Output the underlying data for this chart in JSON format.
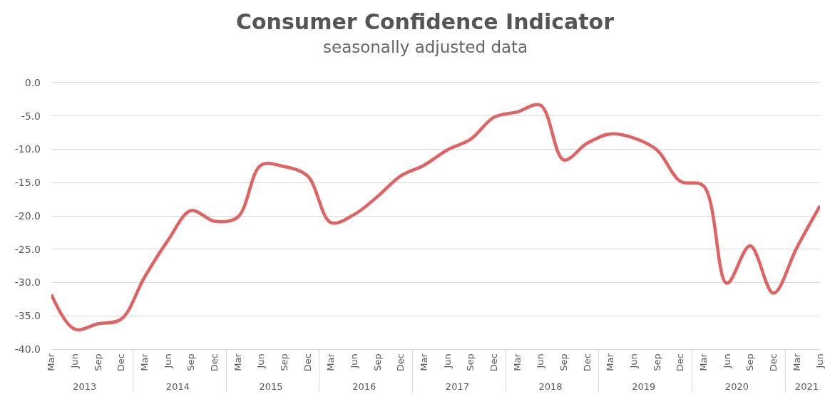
{
  "chart_data": {
    "type": "line",
    "title": "Consumer Confidence Indicator",
    "subtitle": "seasonally adjusted data",
    "categories": [
      "Mar",
      "Jun",
      "Sep",
      "Dec",
      "Mar",
      "Jun",
      "Sep",
      "Dec",
      "Mar",
      "Jun",
      "Sep",
      "Dec",
      "Mar",
      "Jun",
      "Sep",
      "Dec",
      "Mar",
      "Jun",
      "Sep",
      "Dec",
      "Mar",
      "Jun",
      "Sep",
      "Dec",
      "Mar",
      "Jun",
      "Sep",
      "Dec",
      "Mar",
      "Jun",
      "Sep",
      "Dec",
      "Mar",
      "Jun"
    ],
    "annotations": [
      "2013",
      "2014",
      "2015",
      "2016",
      "2017",
      "2018",
      "2019",
      "2020",
      "2021"
    ],
    "series": [
      {
        "color": "#e06262",
        "values": [
          -31.8,
          -37.0,
          -36.2,
          -35.5,
          -29.2,
          -23.7,
          -19.2,
          -20.8,
          -20.2,
          -12.4,
          -12.6,
          -14.0,
          -21.0,
          -19.8,
          -17.1,
          -14.0,
          -12.4,
          -10.1,
          -8.5,
          -5.2,
          -4.4,
          -3.4,
          -11.6,
          -9.1,
          -7.7,
          -8.3,
          -10.1,
          -14.8,
          -15.5,
          -30.1,
          -24.5,
          -31.6,
          -24.8,
          -18.5
        ]
      }
    ],
    "ylim": [
      -40,
      0
    ],
    "yticks": [
      {
        "value": -40,
        "label": "-40.0"
      },
      {
        "value": -35,
        "label": "-35.0"
      },
      {
        "value": -30,
        "label": "-30.0"
      },
      {
        "value": -25,
        "label": "-25.0"
      },
      {
        "value": -20,
        "label": "-20.0"
      },
      {
        "value": -15,
        "label": "-15.0"
      },
      {
        "value": -10,
        "label": "-10.0"
      },
      {
        "value": -5,
        "label": "-5.0"
      },
      {
        "value": 0,
        "label": "0.0"
      }
    ],
    "grid": "y",
    "legend": false
  }
}
